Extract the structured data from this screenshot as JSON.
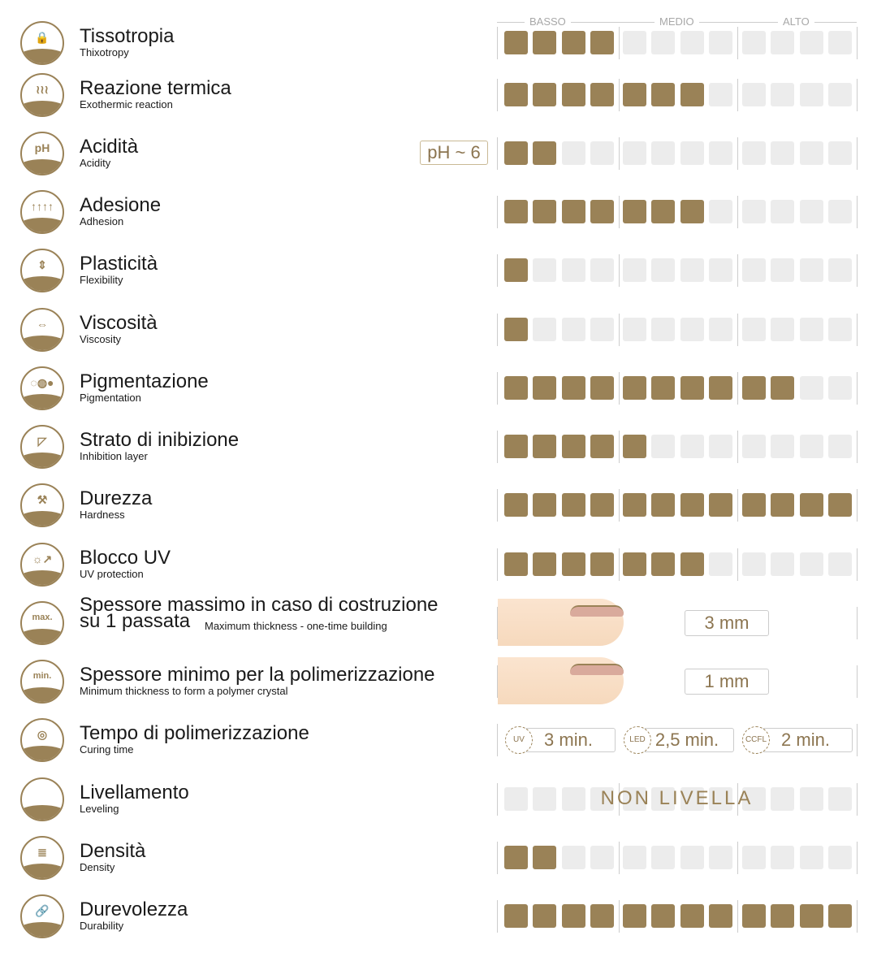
{
  "scale": {
    "headers": [
      "BASSO",
      "MEDIO",
      "ALTO"
    ],
    "total": 12,
    "colors": {
      "on": "#9a8257",
      "off": "#ececec"
    }
  },
  "rows": [
    {
      "title": "Tissotropia",
      "subtitle": "Thixotropy",
      "icon": "lock-icon",
      "glyph": "🔒",
      "level": 4
    },
    {
      "title": "Reazione termica",
      "subtitle": "Exothermic reaction",
      "icon": "heat-waves-icon",
      "glyph": "≀≀≀",
      "level": 7
    },
    {
      "title": "Acidità",
      "subtitle": "Acidity",
      "icon": "ph-drop-icon",
      "glyph": "pH",
      "level": 2,
      "badge": "pH ~ 6"
    },
    {
      "title": "Adesione",
      "subtitle": "Adhesion",
      "icon": "adhesion-icon",
      "glyph": "↑↑↑↑",
      "level": 7
    },
    {
      "title": "Plasticità",
      "subtitle": "Flexibility",
      "icon": "flexibility-icon",
      "glyph": "⇕",
      "level": 1
    },
    {
      "title": "Viscosità",
      "subtitle": "Viscosity",
      "icon": "viscosity-icon",
      "glyph": "⇔",
      "level": 1
    },
    {
      "title": "Pigmentazione",
      "subtitle": "Pigmentation",
      "icon": "drops-icon",
      "glyph": "◌◍●",
      "level": 10
    },
    {
      "title": "Strato di inibizione",
      "subtitle": "Inhibition layer",
      "icon": "inhibition-layer-icon",
      "glyph": "◸",
      "level": 5
    },
    {
      "title": "Durezza",
      "subtitle": "Hardness",
      "icon": "hammer-icon",
      "glyph": "⚒",
      "level": 12
    },
    {
      "title": "Blocco UV",
      "subtitle": "UV protection",
      "icon": "uv-sun-icon",
      "glyph": "☼↗",
      "level": 7
    },
    {
      "title": "Spessore massimo in caso di costruzione",
      "title2": "su 1 passata",
      "subtitle": "Maximum thickness - one-time building",
      "icon": "max-thickness-icon",
      "glyph": "max.",
      "value": "3 mm"
    },
    {
      "title": "Spessore minimo per la polimerizzazione",
      "subtitle": "Minimum thickness to form a polymer crystal",
      "icon": "min-thickness-icon",
      "glyph": "min.",
      "value": "1 mm"
    },
    {
      "title": "Tempo di polimerizzazione",
      "subtitle": "Curing time",
      "icon": "curing-lamp-icon",
      "glyph": "◎",
      "curing": [
        {
          "lamp": "UV",
          "time": "3 min."
        },
        {
          "lamp": "LED",
          "time": "2,5 min."
        },
        {
          "lamp": "CCFL",
          "time": "2 min."
        }
      ]
    },
    {
      "title": "Livellamento",
      "subtitle": "Leveling",
      "icon": "leveling-icon",
      "glyph": "",
      "level": 0,
      "overlay": "NON LIVELLA"
    },
    {
      "title": "Densità",
      "subtitle": "Density",
      "icon": "density-icon",
      "glyph": "≣",
      "level": 2
    },
    {
      "title": "Durevolezza",
      "subtitle": "Durability",
      "icon": "chain-link-icon",
      "glyph": "🔗",
      "level": 12
    }
  ]
}
